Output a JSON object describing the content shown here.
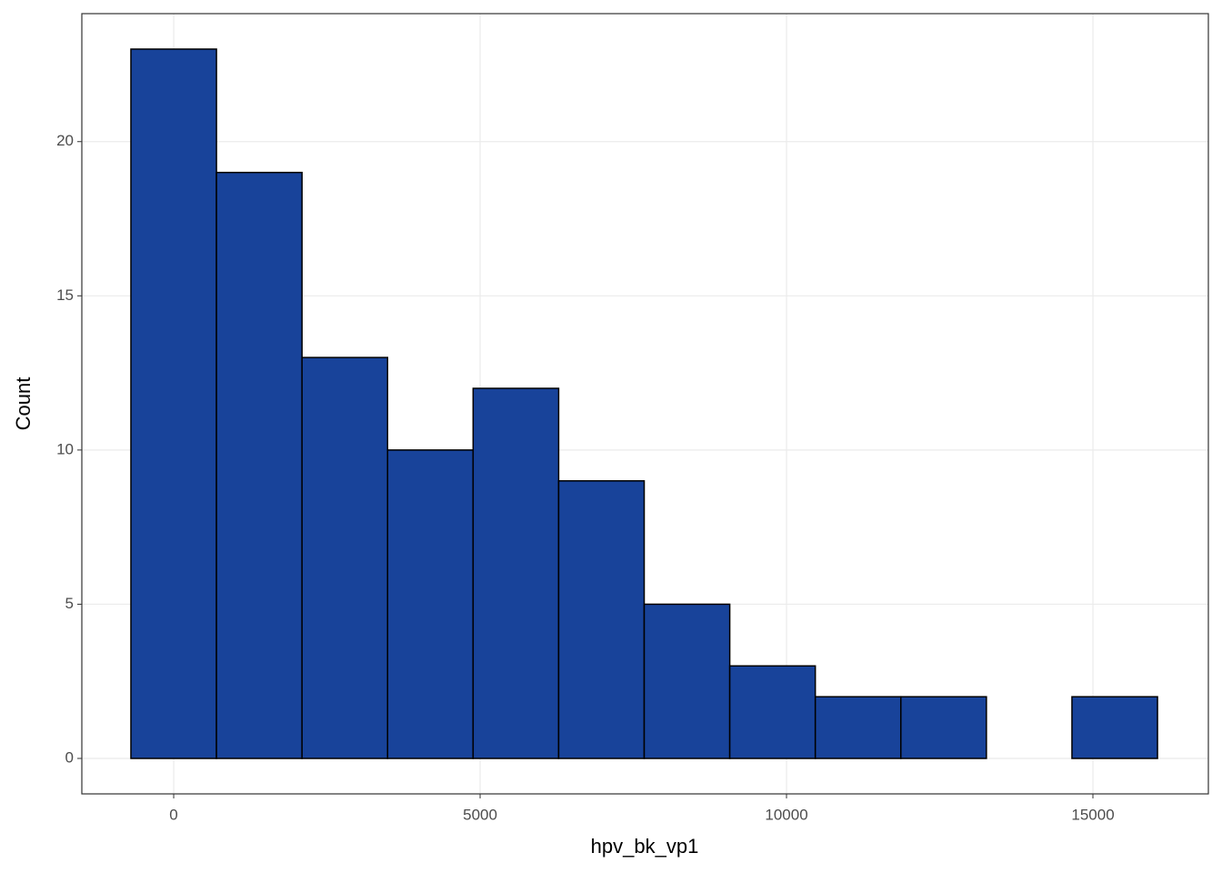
{
  "chart_data": {
    "type": "histogram",
    "x_label": "hpv_bk_vp1",
    "y_label": "Count",
    "bins": [
      -698,
      698,
      2094,
      3490,
      4886,
      6282,
      7678,
      9074,
      10470,
      11866,
      13262,
      14658,
      16054
    ],
    "values": [
      23,
      19,
      13,
      10,
      12,
      9,
      5,
      3,
      2,
      2,
      0,
      2
    ],
    "color": "#18439a",
    "edge_color": "#000000",
    "xlim": [
      -1499,
      16884
    ],
    "ylim": [
      -1.15,
      24.15
    ],
    "xticks": [
      0,
      5000,
      10000,
      15000
    ],
    "yticks": [
      0,
      5,
      10,
      15,
      20
    ],
    "grid": true
  }
}
